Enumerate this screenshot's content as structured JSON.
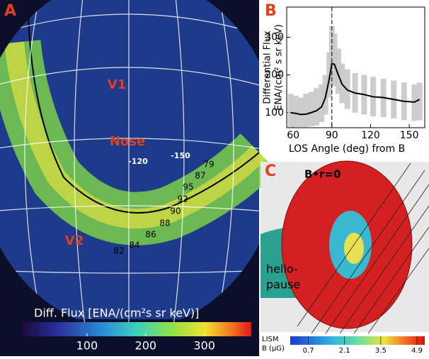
{
  "chart_data": {
    "type": "line",
    "panel_label": "B",
    "xlabel": "LOS Angle (deg) from B",
    "ylabel": [
      "Differential Flux",
      "ENA/(cm² s sr keV)"
    ],
    "x": [
      58,
      62,
      66,
      70,
      74,
      78,
      82,
      85,
      88,
      90,
      92,
      95,
      98,
      102,
      108,
      115,
      122,
      130,
      138,
      146,
      154,
      158
    ],
    "series": [
      {
        "color": "#c8c8c8",
        "values": [
          62,
          62,
          62,
          62,
          64,
          66,
          75,
          95,
          140,
          170,
          170,
          150,
          125,
          110,
          100,
          95,
          90,
          88,
          85,
          80,
          78,
          80
        ]
      },
      {
        "color": "#c8c8c8",
        "values": [
          150,
          145,
          140,
          150,
          155,
          165,
          175,
          200,
          260,
          330,
          310,
          270,
          230,
          215,
          205,
          200,
          195,
          190,
          185,
          180,
          175,
          180
        ]
      },
      {
        "color": "#000000",
        "values": [
          100,
          98,
          95,
          96,
          100,
          105,
          115,
          140,
          190,
          230,
          228,
          200,
          175,
          160,
          152,
          148,
          142,
          140,
          135,
          130,
          128,
          135
        ]
      }
    ],
    "vline": 90,
    "xlim": [
      55,
      162
    ],
    "ylim": [
      60,
      380
    ],
    "xticks": [
      60,
      90,
      120,
      150
    ],
    "yticks": [
      100,
      200,
      300
    ]
  },
  "panel_a": {
    "label": "A",
    "markers": [
      "V1",
      "Nose",
      "V2"
    ],
    "longitudes": [
      "-120",
      "-150"
    ],
    "ribbon_labels": [
      "79",
      "87",
      "95",
      "92",
      "90",
      "88",
      "86",
      "84",
      "82"
    ],
    "colorbar": {
      "title": "Diff. Flux  [ENA/(cm²s sr keV)]",
      "range": [
        0,
        380
      ],
      "ticks": [
        100,
        200,
        300
      ]
    }
  },
  "panel_c": {
    "label": "C",
    "annotation": "B•r=0",
    "region": [
      "helio-",
      "pause"
    ],
    "colorbar": {
      "title": [
        "LISM",
        "B (μG)"
      ],
      "range": [
        0,
        5.2
      ],
      "ticks": [
        0.7,
        2.1,
        3.5,
        4.9
      ]
    }
  }
}
